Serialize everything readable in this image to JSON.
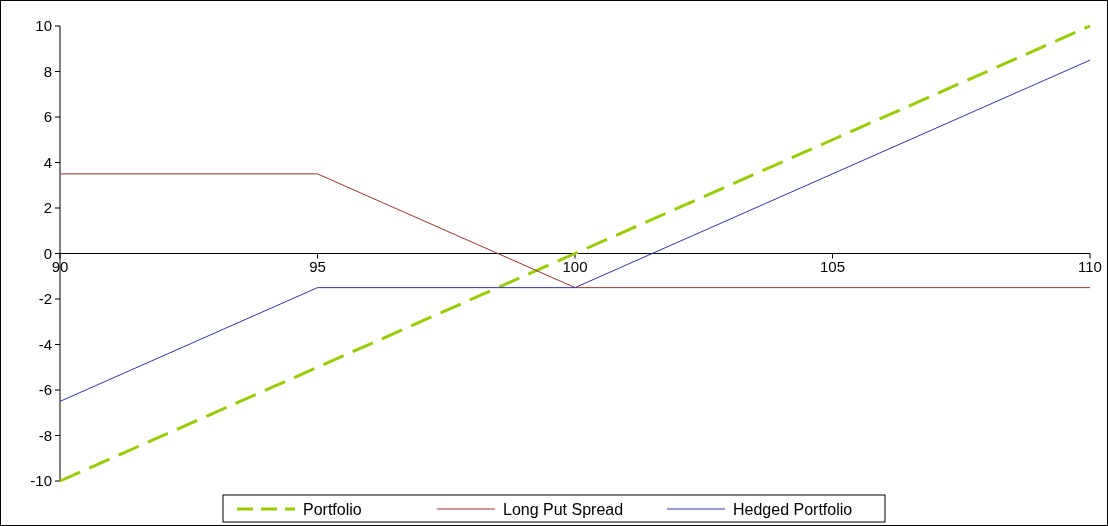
{
  "chart_data": {
    "type": "line",
    "series": [
      {
        "name": "Portfolio",
        "color": "#99cc00",
        "line_style": "dashed",
        "x": [
          90,
          95,
          100,
          105,
          110
        ],
        "values": [
          -10,
          -5,
          0,
          5,
          10
        ]
      },
      {
        "name": "Long Put Spread",
        "color": "#993333",
        "line_style": "solid",
        "x": [
          90,
          95,
          100,
          110
        ],
        "values": [
          3.5,
          3.5,
          -1.5,
          -1.5
        ]
      },
      {
        "name": "Hedged Portfolio",
        "color": "#3333aa",
        "line_style": "solid",
        "x": [
          90,
          95,
          100,
          110
        ],
        "values": [
          -6.5,
          -1.5,
          -1.5,
          8.5
        ]
      }
    ],
    "xlim": [
      90,
      110
    ],
    "xticks": [
      90,
      95,
      100,
      105,
      110
    ],
    "ylim": [
      -10,
      10
    ],
    "yticks": [
      -10,
      -8,
      -6,
      -4,
      -2,
      0,
      2,
      4,
      6,
      8,
      10
    ],
    "grid": false,
    "legend": "bottom",
    "marker": "none"
  }
}
